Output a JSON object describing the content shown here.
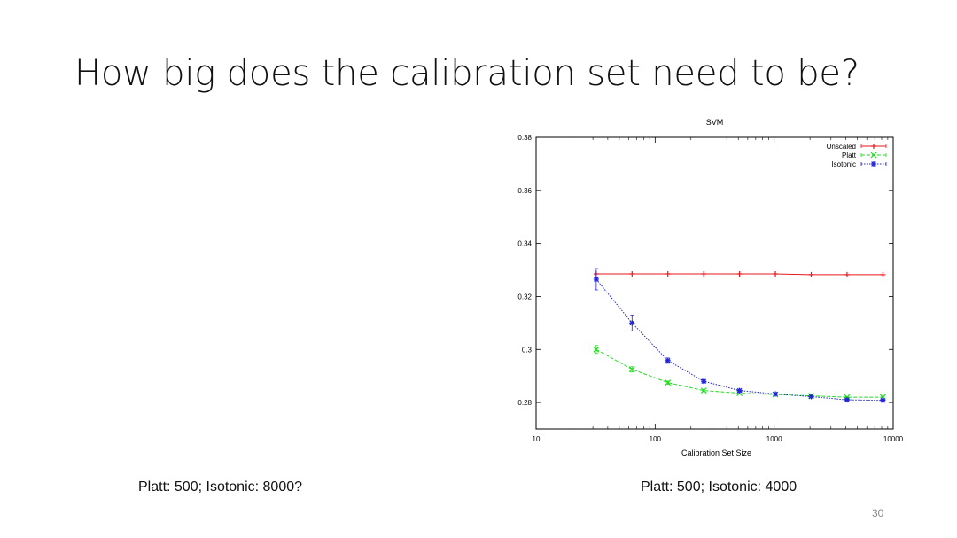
{
  "slide": {
    "title": "How big does the calibration set need to be?",
    "caption_left": "Platt: 500; Isotonic: 8000?",
    "caption_right": "Platt: 500; Isotonic: 4000",
    "page_number": "30"
  },
  "chart_data": {
    "type": "line",
    "title": "SVM",
    "xlabel": "Calibration Set Size",
    "ylabel": "",
    "xscale": "log",
    "xlim": [
      10,
      10000
    ],
    "ylim": [
      0.27,
      0.38
    ],
    "x_ticks": [
      10,
      100,
      1000,
      10000
    ],
    "x_tick_labels": [
      "10",
      "100",
      "1000",
      "10000"
    ],
    "y_ticks": [
      0.28,
      0.3,
      0.32,
      0.34,
      0.36,
      0.38
    ],
    "y_tick_labels": [
      "0.28",
      "0.3",
      "0.32",
      "0.34",
      "0.36",
      "0.38"
    ],
    "legend_position": "top-right",
    "x": [
      32,
      64,
      128,
      256,
      512,
      1024,
      2048,
      4096,
      8192
    ],
    "series": [
      {
        "name": "Unscaled",
        "color": "#e8191e",
        "dash": "solid",
        "marker": "plus",
        "values": [
          0.3285,
          0.3285,
          0.3285,
          0.3285,
          0.3285,
          0.3285,
          0.3282,
          0.3282,
          0.3282
        ],
        "errors": [
          0,
          0,
          0,
          0,
          0,
          0,
          0,
          0,
          0
        ]
      },
      {
        "name": "Platt",
        "color": "#22dd22",
        "dash": "dashed",
        "marker": "x",
        "values": [
          0.3,
          0.2925,
          0.2875,
          0.2845,
          0.2835,
          0.283,
          0.2825,
          0.282,
          0.282
        ],
        "errors": [
          0.0015,
          0.001,
          0.0006,
          0.0004,
          0.0003,
          0.0002,
          0.0002,
          0.0002,
          0.0002
        ]
      },
      {
        "name": "Isotonic",
        "color": "#2424d8",
        "dash": "dotted",
        "marker": "star",
        "values": [
          0.3265,
          0.31,
          0.2958,
          0.288,
          0.2845,
          0.2832,
          0.2822,
          0.281,
          0.2808
        ],
        "errors": [
          0.004,
          0.003,
          0.001,
          0.0006,
          0.0004,
          0.0003,
          0.0003,
          0.0003,
          0.0003
        ]
      }
    ]
  }
}
